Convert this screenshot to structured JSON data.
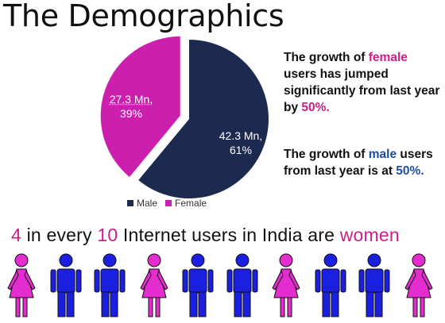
{
  "title": "The Demographics",
  "chart_data": {
    "type": "pie",
    "title": "",
    "slices": [
      {
        "name": "Male",
        "value": 42.3,
        "percent": 61,
        "label_value": "42.3 Mn,",
        "label_percent": "61%",
        "color": "#1c2a4f"
      },
      {
        "name": "Female",
        "value": 27.3,
        "percent": 39,
        "label_value": "27.3 Mn,",
        "label_percent": "39%",
        "color": "#cc1fae"
      }
    ],
    "legend": {
      "placement": "bottom",
      "items": [
        "Male",
        "Female"
      ]
    }
  },
  "side": {
    "p1": {
      "a": "The growth of ",
      "b": "female",
      "c": " users has jumped significantly from last year by ",
      "d": "50%."
    },
    "p2": {
      "a": "The growth of ",
      "b": "male",
      "c": " users from last year is at ",
      "d": "50%."
    }
  },
  "subtitle": {
    "n1": "4",
    "t1": " in every ",
    "n2": "10",
    "t2": " Internet users in India are ",
    "w": "women"
  },
  "people": [
    "female",
    "male",
    "male",
    "female",
    "male",
    "male",
    "female",
    "male",
    "male",
    "female"
  ],
  "colors": {
    "female": "#e32dcf",
    "male": "#1b1fe0",
    "title_accent": "#cc1f8a"
  }
}
